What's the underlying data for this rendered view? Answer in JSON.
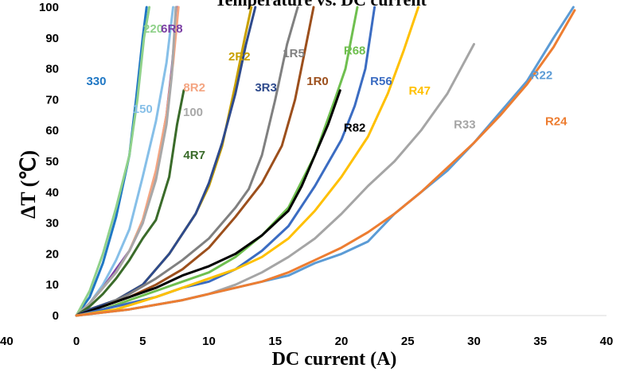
{
  "chart_data": {
    "type": "line",
    "title": "Temperature vs. DC current",
    "xlabel": "DC current (A)",
    "ylabel": "ΔT (℃)",
    "xlim": [
      0,
      40
    ],
    "ylim": [
      0,
      100
    ],
    "x_ticks": [
      0,
      5,
      10,
      15,
      20,
      25,
      30,
      35,
      40
    ],
    "y_ticks": [
      0,
      10,
      20,
      30,
      40,
      50,
      60,
      70,
      80,
      90,
      100
    ],
    "left_edge_tick": "40",
    "grid": false,
    "legend": "none (series labeled inline)",
    "series": [
      {
        "name": "330",
        "color": "#1f77c4",
        "label_at": [
          1.5,
          76
        ],
        "points": [
          [
            0,
            0
          ],
          [
            1,
            6
          ],
          [
            2,
            17
          ],
          [
            3,
            32
          ],
          [
            4,
            52
          ],
          [
            4.5,
            70
          ],
          [
            5,
            90
          ],
          [
            5.3,
            100
          ]
        ]
      },
      {
        "name": "220",
        "color": "#8fd18a",
        "label_at": [
          5.8,
          93
        ],
        "points": [
          [
            0,
            0
          ],
          [
            1,
            8
          ],
          [
            2,
            20
          ],
          [
            3,
            35
          ],
          [
            4,
            52
          ],
          [
            4.6,
            70
          ],
          [
            5.1,
            90
          ],
          [
            5.5,
            100
          ]
        ]
      },
      {
        "name": "150",
        "color": "#86bfe8",
        "label_at": [
          5.0,
          67
        ],
        "points": [
          [
            0,
            0
          ],
          [
            1,
            4
          ],
          [
            2,
            10
          ],
          [
            3,
            18
          ],
          [
            4,
            28
          ],
          [
            5,
            45
          ],
          [
            6,
            63
          ],
          [
            6.8,
            82
          ],
          [
            7.3,
            100
          ]
        ]
      },
      {
        "name": "6R8",
        "color": "#7b3fa4",
        "label_at": [
          7.2,
          93
        ],
        "points": [
          [
            0,
            0
          ],
          [
            1,
            4
          ],
          [
            2,
            9
          ],
          [
            3,
            15
          ],
          [
            4,
            21
          ],
          [
            5,
            30
          ],
          [
            6,
            46
          ],
          [
            6.8,
            65
          ],
          [
            7.2,
            80
          ],
          [
            7.6,
            100
          ]
        ]
      },
      {
        "name": "8R2",
        "color": "#f4a582",
        "label_at": [
          8.9,
          74
        ],
        "points": [
          [
            0,
            0
          ],
          [
            1,
            4
          ],
          [
            2,
            9
          ],
          [
            3,
            14
          ],
          [
            4,
            21
          ],
          [
            5,
            31
          ],
          [
            6,
            47
          ],
          [
            6.8,
            65
          ],
          [
            7.3,
            82
          ],
          [
            7.7,
            100
          ]
        ]
      },
      {
        "name": "100",
        "color": "#a8a8a8",
        "label_at": [
          8.8,
          66
        ],
        "points": [
          [
            0,
            0
          ],
          [
            1,
            4
          ],
          [
            2,
            9
          ],
          [
            3,
            14
          ],
          [
            4,
            21
          ],
          [
            5,
            30
          ],
          [
            6,
            44
          ],
          [
            6.8,
            62
          ],
          [
            7.2,
            78
          ],
          [
            7.5,
            100
          ]
        ]
      },
      {
        "name": "4R7",
        "color": "#3a6b2a",
        "label_at": [
          8.9,
          52
        ],
        "points": [
          [
            0,
            0
          ],
          [
            1,
            3
          ],
          [
            2,
            7
          ],
          [
            3,
            12
          ],
          [
            4,
            18
          ],
          [
            5,
            25
          ],
          [
            6,
            31
          ],
          [
            7,
            45
          ],
          [
            7.6,
            62
          ],
          [
            8.1,
            73
          ]
        ]
      },
      {
        "name": "2R2",
        "color": "#c8a000",
        "label_at": [
          12.3,
          84
        ],
        "points": [
          [
            0,
            0
          ],
          [
            1,
            2
          ],
          [
            3,
            5
          ],
          [
            5,
            10
          ],
          [
            7,
            20
          ],
          [
            9,
            33
          ],
          [
            10,
            42
          ],
          [
            11,
            55
          ],
          [
            12,
            75
          ],
          [
            12.7,
            90
          ],
          [
            13.2,
            100
          ]
        ]
      },
      {
        "name": "3R3",
        "color": "#2e4a8c",
        "label_at": [
          14.3,
          74
        ],
        "points": [
          [
            0,
            0
          ],
          [
            1,
            2
          ],
          [
            3,
            5
          ],
          [
            5,
            10
          ],
          [
            7,
            20
          ],
          [
            9,
            33
          ],
          [
            10,
            43
          ],
          [
            11,
            56
          ],
          [
            12,
            72
          ],
          [
            12.8,
            88
          ],
          [
            13.5,
            100
          ]
        ]
      },
      {
        "name": "1R5",
        "color": "#808080",
        "label_at": [
          16.4,
          85
        ],
        "points": [
          [
            0,
            0
          ],
          [
            2,
            3
          ],
          [
            4,
            7
          ],
          [
            6,
            12
          ],
          [
            8,
            18
          ],
          [
            10,
            25
          ],
          [
            12,
            35
          ],
          [
            13,
            41
          ],
          [
            14,
            52
          ],
          [
            15,
            70
          ],
          [
            15.9,
            88
          ],
          [
            16.7,
            100
          ]
        ]
      },
      {
        "name": "1R0",
        "color": "#9c4f1c",
        "label_at": [
          18.2,
          76
        ],
        "points": [
          [
            0,
            0
          ],
          [
            2,
            3
          ],
          [
            4,
            6
          ],
          [
            6,
            10
          ],
          [
            8,
            15
          ],
          [
            10,
            22
          ],
          [
            12,
            32
          ],
          [
            14,
            43
          ],
          [
            15.5,
            55
          ],
          [
            16.5,
            70
          ],
          [
            17.2,
            85
          ],
          [
            17.9,
            100
          ]
        ]
      },
      {
        "name": "R68",
        "color": "#6fbf4f",
        "label_at": [
          21.0,
          86
        ],
        "points": [
          [
            0,
            0
          ],
          [
            2,
            2
          ],
          [
            4,
            5
          ],
          [
            6,
            8
          ],
          [
            8,
            11
          ],
          [
            10,
            14
          ],
          [
            12,
            19
          ],
          [
            14,
            26
          ],
          [
            16,
            35
          ],
          [
            18,
            52
          ],
          [
            19.5,
            70
          ],
          [
            20.3,
            80
          ],
          [
            21.2,
            100
          ]
        ]
      },
      {
        "name": "R82",
        "color": "#000000",
        "label_at": [
          21.0,
          61
        ],
        "points": [
          [
            0,
            0
          ],
          [
            2,
            3
          ],
          [
            4,
            6
          ],
          [
            6,
            9
          ],
          [
            8,
            13
          ],
          [
            10,
            16
          ],
          [
            12,
            20
          ],
          [
            14,
            26
          ],
          [
            16,
            34
          ],
          [
            17,
            42
          ],
          [
            18,
            52
          ],
          [
            19,
            62
          ],
          [
            19.9,
            73
          ]
        ]
      },
      {
        "name": "R56",
        "color": "#3b6cc2",
        "label_at": [
          23.0,
          76
        ],
        "points": [
          [
            0,
            0
          ],
          [
            2,
            2
          ],
          [
            4,
            4
          ],
          [
            6,
            6
          ],
          [
            8,
            9
          ],
          [
            10,
            11
          ],
          [
            12,
            15
          ],
          [
            14,
            21
          ],
          [
            16,
            29
          ],
          [
            18,
            42
          ],
          [
            20,
            57
          ],
          [
            21,
            68
          ],
          [
            21.8,
            80
          ],
          [
            22.5,
            100
          ]
        ]
      },
      {
        "name": "R47",
        "color": "#ffc000",
        "label_at": [
          25.9,
          73
        ],
        "points": [
          [
            0,
            0
          ],
          [
            3,
            2
          ],
          [
            6,
            6
          ],
          [
            8,
            9
          ],
          [
            10,
            12
          ],
          [
            12,
            15
          ],
          [
            14,
            19
          ],
          [
            16,
            25
          ],
          [
            18,
            34
          ],
          [
            20,
            45
          ],
          [
            22,
            58
          ],
          [
            23.5,
            72
          ],
          [
            24.7,
            86
          ],
          [
            25.8,
            100
          ]
        ]
      },
      {
        "name": "R33",
        "color": "#a5a5a5",
        "label_at": [
          29.3,
          62
        ],
        "points": [
          [
            0,
            0
          ],
          [
            4,
            2
          ],
          [
            8,
            5
          ],
          [
            10,
            7
          ],
          [
            12,
            10
          ],
          [
            14,
            14
          ],
          [
            16,
            19
          ],
          [
            18,
            25
          ],
          [
            20,
            33
          ],
          [
            22,
            42
          ],
          [
            24,
            50
          ],
          [
            26,
            60
          ],
          [
            28,
            72
          ],
          [
            30,
            88
          ]
        ]
      },
      {
        "name": "R22",
        "color": "#5b9bd5",
        "label_at": [
          35.1,
          78
        ],
        "points": [
          [
            0,
            0
          ],
          [
            4,
            2
          ],
          [
            8,
            5
          ],
          [
            10,
            7
          ],
          [
            12,
            9
          ],
          [
            14,
            11
          ],
          [
            16,
            13
          ],
          [
            18,
            17
          ],
          [
            20,
            20
          ],
          [
            22,
            24
          ],
          [
            24,
            33
          ],
          [
            26,
            40
          ],
          [
            28,
            47
          ],
          [
            30,
            56
          ],
          [
            32,
            66
          ],
          [
            34,
            76
          ],
          [
            36,
            90
          ],
          [
            37.5,
            100
          ]
        ]
      },
      {
        "name": "R24",
        "color": "#ed7d31",
        "label_at": [
          36.2,
          63
        ],
        "points": [
          [
            0,
            0
          ],
          [
            4,
            2
          ],
          [
            8,
            5
          ],
          [
            10,
            7
          ],
          [
            12,
            9
          ],
          [
            14,
            11
          ],
          [
            16,
            14
          ],
          [
            18,
            18
          ],
          [
            20,
            22
          ],
          [
            22,
            27
          ],
          [
            24,
            33
          ],
          [
            26,
            40
          ],
          [
            28,
            48
          ],
          [
            30,
            56
          ],
          [
            32,
            65
          ],
          [
            34,
            75
          ],
          [
            36,
            87
          ],
          [
            37.6,
            99
          ]
        ]
      }
    ]
  }
}
